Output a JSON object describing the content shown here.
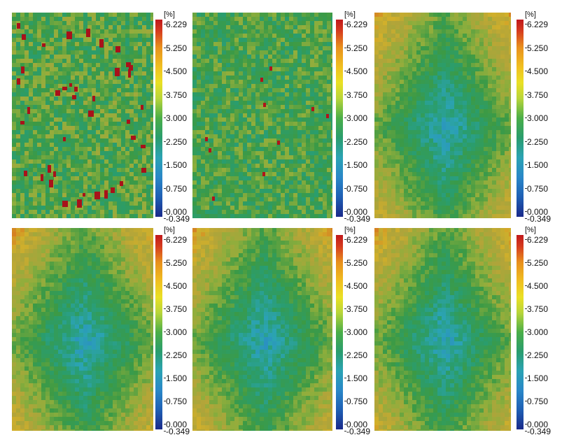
{
  "colorbar": {
    "unit": "[%]",
    "labels": [
      "6.229",
      "5.250",
      "4.500",
      "3.750",
      "3.000",
      "2.250",
      "1.500",
      "0.750",
      "0.000",
      "-0.349"
    ]
  },
  "panels": [
    {
      "pattern": "uniform-with-hotspots"
    },
    {
      "pattern": "uniform-mild"
    },
    {
      "pattern": "diamond-low-center"
    },
    {
      "pattern": "diamond-low-center"
    },
    {
      "pattern": "diamond-low-center"
    },
    {
      "pattern": "diamond-low-center"
    }
  ]
}
